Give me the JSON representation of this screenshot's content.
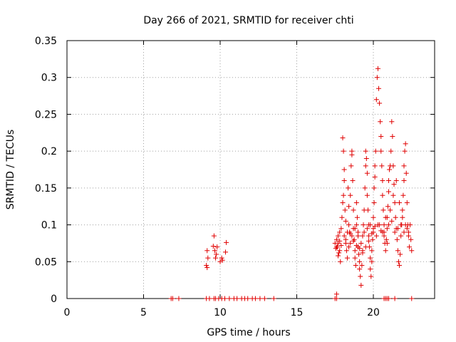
{
  "chart_data": {
    "type": "scatter",
    "title": "Day 266 of 2021, SRMTID for receiver chti",
    "xlabel": "GPS time / hours",
    "ylabel": "SRMTID / TECUs",
    "xlim": [
      0,
      24
    ],
    "ylim": [
      0,
      0.35
    ],
    "grid": true,
    "x_ticks": [
      0,
      5,
      10,
      15,
      20
    ],
    "x_tick_labels": [
      "0",
      "5",
      "10",
      "15",
      "20"
    ],
    "y_ticks": [
      0,
      0.05,
      0.1,
      0.15,
      0.2,
      0.25,
      0.3,
      0.35
    ],
    "y_tick_labels": [
      "0",
      "0.05",
      "0.1",
      "0.15",
      "0.2",
      "0.25",
      "0.3",
      "0.35"
    ],
    "marker": "+",
    "color": "#e00000",
    "series": [
      {
        "name": "SRMTID",
        "points": [
          [
            6.8,
            0
          ],
          [
            6.9,
            0
          ],
          [
            7.3,
            0
          ],
          [
            9.1,
            0
          ],
          [
            9.3,
            0
          ],
          [
            9.6,
            0
          ],
          [
            9.7,
            0
          ],
          [
            9.9,
            0
          ],
          [
            10.1,
            0
          ],
          [
            10.3,
            0
          ],
          [
            10.6,
            0
          ],
          [
            10.9,
            0
          ],
          [
            11.1,
            0
          ],
          [
            11.4,
            0
          ],
          [
            11.6,
            0
          ],
          [
            11.8,
            0
          ],
          [
            12.1,
            0
          ],
          [
            12.3,
            0
          ],
          [
            12.6,
            0
          ],
          [
            12.9,
            0
          ],
          [
            13.5,
            0
          ],
          [
            17.5,
            0
          ],
          [
            17.6,
            0
          ],
          [
            20.7,
            0
          ],
          [
            20.8,
            0
          ],
          [
            20.9,
            0
          ],
          [
            21.0,
            0
          ],
          [
            21.4,
            0
          ],
          [
            22.5,
            0
          ],
          [
            17.6,
            0.006
          ],
          [
            9.1,
            0.045
          ],
          [
            9.15,
            0.042
          ],
          [
            9.2,
            0.055
          ],
          [
            9.15,
            0.065
          ],
          [
            9.55,
            0.071
          ],
          [
            9.6,
            0.085
          ],
          [
            9.65,
            0.065
          ],
          [
            9.7,
            0.055
          ],
          [
            9.75,
            0.06
          ],
          [
            9.8,
            0.07
          ],
          [
            10.0,
            0.05
          ],
          [
            10.1,
            0.055
          ],
          [
            10.15,
            0.052
          ],
          [
            10.35,
            0.063
          ],
          [
            10.4,
            0.076
          ],
          [
            17.5,
            0.075
          ],
          [
            17.55,
            0.068
          ],
          [
            17.6,
            0.08
          ],
          [
            17.65,
            0.07
          ],
          [
            17.7,
            0.058
          ],
          [
            17.7,
            0.085
          ],
          [
            17.75,
            0.062
          ],
          [
            17.8,
            0.09
          ],
          [
            17.8,
            0.065
          ],
          [
            17.85,
            0.05
          ],
          [
            17.9,
            0.095
          ],
          [
            17.95,
            0.11
          ],
          [
            18.0,
            0.13
          ],
          [
            18.0,
            0.218
          ],
          [
            18.05,
            0.2
          ],
          [
            18.05,
            0.14
          ],
          [
            18.1,
            0.175
          ],
          [
            18.1,
            0.16
          ],
          [
            18.15,
            0.12
          ],
          [
            18.2,
            0.105
          ],
          [
            18.2,
            0.08
          ],
          [
            18.25,
            0.065
          ],
          [
            18.3,
            0.055
          ],
          [
            18.35,
            0.15
          ],
          [
            18.4,
            0.125
          ],
          [
            18.4,
            0.1
          ],
          [
            18.45,
            0.09
          ],
          [
            18.5,
            0.075
          ],
          [
            18.5,
            0.14
          ],
          [
            18.55,
            0.18
          ],
          [
            18.6,
            0.195
          ],
          [
            18.6,
            0.2
          ],
          [
            18.65,
            0.16
          ],
          [
            18.7,
            0.12
          ],
          [
            18.7,
            0.095
          ],
          [
            18.75,
            0.08
          ],
          [
            18.8,
            0.065
          ],
          [
            18.8,
            0.055
          ],
          [
            18.85,
            0.045
          ],
          [
            18.9,
            0.1
          ],
          [
            18.9,
            0.13
          ],
          [
            18.95,
            0.11
          ],
          [
            19.0,
            0.09
          ],
          [
            19.0,
            0.07
          ],
          [
            19.05,
            0.06
          ],
          [
            19.1,
            0.05
          ],
          [
            19.1,
            0.04
          ],
          [
            19.15,
            0.03
          ],
          [
            19.2,
            0.018
          ],
          [
            19.25,
            0.045
          ],
          [
            19.3,
            0.065
          ],
          [
            19.3,
            0.085
          ],
          [
            19.35,
            0.1
          ],
          [
            19.4,
            0.12
          ],
          [
            19.45,
            0.15
          ],
          [
            19.5,
            0.18
          ],
          [
            19.5,
            0.2
          ],
          [
            19.55,
            0.19
          ],
          [
            19.6,
            0.17
          ],
          [
            19.6,
            0.14
          ],
          [
            19.65,
            0.12
          ],
          [
            19.7,
            0.1
          ],
          [
            19.7,
            0.085
          ],
          [
            19.75,
            0.07
          ],
          [
            19.8,
            0.055
          ],
          [
            19.8,
            0.04
          ],
          [
            19.85,
            0.03
          ],
          [
            19.9,
            0.05
          ],
          [
            19.9,
            0.065
          ],
          [
            19.95,
            0.08
          ],
          [
            20.0,
            0.095
          ],
          [
            20.0,
            0.11
          ],
          [
            20.05,
            0.13
          ],
          [
            20.05,
            0.15
          ],
          [
            20.1,
            0.165
          ],
          [
            20.1,
            0.18
          ],
          [
            20.15,
            0.2
          ],
          [
            20.2,
            0.27
          ],
          [
            20.25,
            0.3
          ],
          [
            20.3,
            0.312
          ],
          [
            20.35,
            0.285
          ],
          [
            20.4,
            0.265
          ],
          [
            20.45,
            0.24
          ],
          [
            20.5,
            0.22
          ],
          [
            20.5,
            0.2
          ],
          [
            20.55,
            0.18
          ],
          [
            20.6,
            0.16
          ],
          [
            20.6,
            0.14
          ],
          [
            20.65,
            0.12
          ],
          [
            20.7,
            0.1
          ],
          [
            20.7,
            0.09
          ],
          [
            20.75,
            0.075
          ],
          [
            20.8,
            0.065
          ],
          [
            20.85,
            0.08
          ],
          [
            20.9,
            0.095
          ],
          [
            20.9,
            0.11
          ],
          [
            20.95,
            0.125
          ],
          [
            21.0,
            0.145
          ],
          [
            21.0,
            0.16
          ],
          [
            21.05,
            0.175
          ],
          [
            21.1,
            0.18
          ],
          [
            21.15,
            0.2
          ],
          [
            21.2,
            0.24
          ],
          [
            21.25,
            0.22
          ],
          [
            21.3,
            0.18
          ],
          [
            21.35,
            0.155
          ],
          [
            21.4,
            0.13
          ],
          [
            21.45,
            0.11
          ],
          [
            21.5,
            0.095
          ],
          [
            21.55,
            0.08
          ],
          [
            21.6,
            0.065
          ],
          [
            21.65,
            0.05
          ],
          [
            21.7,
            0.045
          ],
          [
            21.75,
            0.06
          ],
          [
            21.8,
            0.085
          ],
          [
            21.85,
            0.1
          ],
          [
            21.9,
            0.12
          ],
          [
            21.95,
            0.14
          ],
          [
            22.0,
            0.16
          ],
          [
            22.0,
            0.18
          ],
          [
            22.05,
            0.2
          ],
          [
            22.1,
            0.21
          ],
          [
            22.15,
            0.17
          ],
          [
            22.2,
            0.13
          ],
          [
            22.25,
            0.1
          ],
          [
            22.3,
            0.085
          ],
          [
            22.35,
            0.07
          ],
          [
            22.4,
            0.1
          ],
          [
            22.45,
            0.08
          ],
          [
            22.5,
            0.065
          ],
          [
            18.2,
            0.075
          ],
          [
            18.4,
            0.07
          ],
          [
            18.6,
            0.085
          ],
          [
            18.8,
            0.095
          ],
          [
            19.0,
            0.085
          ],
          [
            19.2,
            0.075
          ],
          [
            19.4,
            0.09
          ],
          [
            19.6,
            0.095
          ],
          [
            19.8,
            0.1
          ],
          [
            20.0,
            0.09
          ],
          [
            20.2,
            0.085
          ],
          [
            20.4,
            0.1
          ],
          [
            20.6,
            0.09
          ],
          [
            20.8,
            0.11
          ],
          [
            21.0,
            0.1
          ],
          [
            21.2,
            0.105
          ],
          [
            21.4,
            0.09
          ],
          [
            21.6,
            0.095
          ],
          [
            21.8,
            0.1
          ],
          [
            22.0,
            0.09
          ],
          [
            22.2,
            0.095
          ],
          [
            17.6,
            0.07
          ],
          [
            17.7,
            0.075
          ],
          [
            17.8,
            0.078
          ],
          [
            17.9,
            0.072
          ],
          [
            18.1,
            0.085
          ],
          [
            18.3,
            0.09
          ],
          [
            18.5,
            0.088
          ],
          [
            18.7,
            0.078
          ],
          [
            18.9,
            0.072
          ],
          [
            19.1,
            0.068
          ],
          [
            19.3,
            0.062
          ],
          [
            19.5,
            0.07
          ],
          [
            19.7,
            0.078
          ],
          [
            19.9,
            0.088
          ],
          [
            20.1,
            0.098
          ],
          [
            20.3,
            0.1
          ],
          [
            20.5,
            0.092
          ],
          [
            20.7,
            0.085
          ],
          [
            20.9,
            0.075
          ],
          [
            21.1,
            0.12
          ],
          [
            21.3,
            0.14
          ],
          [
            21.5,
            0.16
          ],
          [
            21.7,
            0.13
          ],
          [
            21.9,
            0.11
          ],
          [
            22.1,
            0.1
          ],
          [
            22.3,
            0.09
          ]
        ]
      }
    ]
  }
}
